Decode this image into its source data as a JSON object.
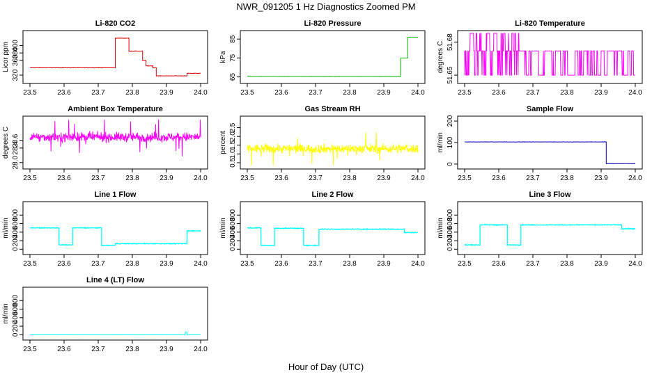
{
  "figure": {
    "title": "NWR_091205  1 Hz Diagnostics Zoomed PM",
    "xlabel": "Hour of Day (UTC)"
  },
  "chart_data": [
    {
      "type": "line",
      "id": "co2",
      "title": "Li-820 CO2",
      "ylabel": "Licor ppm",
      "color": "#dd0000",
      "xlim": [
        23.5,
        24.0
      ],
      "ylim": [
        305,
        433
      ],
      "xticks": [
        "23.5",
        "23.6",
        "23.7",
        "23.8",
        "23.9",
        "24.0"
      ],
      "yticks": [
        {
          "v": 320,
          "label": "320"
        },
        {
          "v": 360,
          "label": "360"
        },
        {
          "v": 380,
          "label": "380"
        },
        {
          "v": 400,
          "label": "400"
        }
      ],
      "noise": 1,
      "segments": [
        [
          23.5,
          23.75,
          340
        ],
        [
          23.75,
          23.79,
          420
        ],
        [
          23.79,
          23.83,
          385
        ],
        [
          23.83,
          23.84,
          360
        ],
        [
          23.84,
          23.86,
          345
        ],
        [
          23.86,
          23.87,
          340
        ],
        [
          23.87,
          23.96,
          318
        ],
        [
          23.96,
          24.0,
          325
        ]
      ]
    },
    {
      "type": "line",
      "id": "pressure",
      "title": "Li-820 Pressure",
      "ylabel": "kPa",
      "color": "#00bb00",
      "xlim": [
        23.5,
        24.0
      ],
      "ylim": [
        63,
        88
      ],
      "xticks": [
        "23.5",
        "23.6",
        "23.7",
        "23.8",
        "23.9",
        "24.0"
      ],
      "yticks": [
        {
          "v": 65,
          "label": "65"
        },
        {
          "v": 75,
          "label": "75"
        },
        {
          "v": 85,
          "label": "85"
        }
      ],
      "noise": 0.1,
      "segments": [
        [
          23.5,
          23.95,
          65.3
        ],
        [
          23.95,
          23.97,
          75
        ],
        [
          23.97,
          24.0,
          86
        ]
      ]
    },
    {
      "type": "binary",
      "id": "li820temp",
      "title": "Li-820 Temperature",
      "ylabel": "degrees C",
      "color": "#ff00ff",
      "xlim": [
        23.5,
        24.0
      ],
      "ylim": [
        51.645,
        51.688
      ],
      "xticks": [
        "23.5",
        "23.6",
        "23.7",
        "23.8",
        "23.9",
        "24.0"
      ],
      "yticks": [
        {
          "v": 51.65,
          "label": "51.65"
        },
        {
          "v": 51.68,
          "label": "51.68"
        }
      ],
      "low": 51.65,
      "high": 51.672,
      "top": 51.688
    },
    {
      "type": "noise",
      "id": "ambient",
      "title": "Ambient Box Temperature",
      "ylabel": "degrees C",
      "color": "#ff00ff",
      "xlim": [
        23.5,
        24.0
      ],
      "ylim": [
        27.9,
        29.2
      ],
      "xticks": [
        "23.5",
        "23.6",
        "23.7",
        "23.8",
        "23.9",
        "24.0"
      ],
      "yticks": [
        {
          "v": 28.0,
          "label": "28.0"
        },
        {
          "v": 28.4,
          "label": "28.4"
        },
        {
          "v": 28.6,
          "label": "28.6"
        }
      ],
      "center": 28.7,
      "spread": 0.22
    },
    {
      "type": "noise",
      "id": "rh",
      "title": "Gas Stream RH",
      "ylabel": "percent",
      "color": "#ffff00",
      "xlim": [
        23.5,
        24.0
      ],
      "ylim": [
        0.3,
        3.0
      ],
      "xticks": [
        "23.5",
        "23.6",
        "23.7",
        "23.8",
        "23.9",
        "24.0"
      ],
      "yticks": [
        {
          "v": 0.5,
          "label": "0.5"
        },
        {
          "v": 1.0,
          "label": "1.0"
        },
        {
          "v": 1.5,
          "label": "1.5"
        },
        {
          "v": 2.0,
          "label": "2.0"
        },
        {
          "v": 2.5,
          "label": "2.5"
        }
      ],
      "center": 1.3,
      "spread": 0.45
    },
    {
      "type": "line",
      "id": "sampleflow",
      "title": "Sample Flow",
      "ylabel": "ml/min",
      "color": "#0000bb",
      "xlim": [
        23.5,
        24.0
      ],
      "ylim": [
        -10,
        210
      ],
      "xticks": [
        "23.5",
        "23.6",
        "23.7",
        "23.8",
        "23.9",
        "24.0"
      ],
      "yticks": [
        {
          "v": 0,
          "label": "0"
        },
        {
          "v": 100,
          "label": "100"
        },
        {
          "v": 200,
          "label": "200"
        }
      ],
      "noise": 1.2,
      "segments": [
        [
          23.5,
          23.915,
          103
        ],
        [
          23.915,
          24.0,
          2
        ]
      ]
    },
    {
      "type": "line",
      "id": "line1",
      "title": "Line 1 Flow",
      "ylabel": "ml/min",
      "color": "#00ffff",
      "xlim": [
        23.5,
        24.0
      ],
      "ylim": [
        -60,
        1050
      ],
      "xticks": [
        "23.5",
        "23.6",
        "23.7",
        "23.8",
        "23.9",
        "24.0"
      ],
      "yticks": [
        {
          "v": 0,
          "label": "0"
        },
        {
          "v": 200,
          "label": "200"
        },
        {
          "v": 400,
          "label": "400"
        },
        {
          "v": 600,
          "label": "600"
        },
        {
          "v": 800,
          "label": "800"
        }
      ],
      "noise": 15,
      "segments": [
        [
          23.5,
          23.585,
          500
        ],
        [
          23.585,
          23.625,
          100
        ],
        [
          23.625,
          23.71,
          500
        ],
        [
          23.71,
          23.75,
          90
        ],
        [
          23.75,
          23.96,
          130
        ],
        [
          23.96,
          24.0,
          430
        ]
      ]
    },
    {
      "type": "line",
      "id": "line2",
      "title": "Line 2 Flow",
      "ylabel": "ml/min",
      "color": "#00ffff",
      "xlim": [
        23.5,
        24.0
      ],
      "ylim": [
        -60,
        1050
      ],
      "xticks": [
        "23.5",
        "23.6",
        "23.7",
        "23.8",
        "23.9",
        "24.0"
      ],
      "yticks": [
        {
          "v": 0,
          "label": "0"
        },
        {
          "v": 200,
          "label": "200"
        },
        {
          "v": 400,
          "label": "400"
        },
        {
          "v": 600,
          "label": "600"
        },
        {
          "v": 800,
          "label": "800"
        }
      ],
      "noise": 15,
      "segments": [
        [
          23.5,
          23.54,
          500
        ],
        [
          23.54,
          23.58,
          90
        ],
        [
          23.58,
          23.665,
          490
        ],
        [
          23.665,
          23.71,
          90
        ],
        [
          23.71,
          23.96,
          470
        ],
        [
          23.96,
          24.0,
          390
        ]
      ]
    },
    {
      "type": "line",
      "id": "line3",
      "title": "Line 3 Flow",
      "ylabel": "ml/min",
      "color": "#00ffff",
      "xlim": [
        23.5,
        24.0
      ],
      "ylim": [
        -60,
        1050
      ],
      "xticks": [
        "23.5",
        "23.6",
        "23.7",
        "23.8",
        "23.9",
        "24.0"
      ],
      "yticks": [
        {
          "v": 0,
          "label": "0"
        },
        {
          "v": 200,
          "label": "200"
        },
        {
          "v": 400,
          "label": "400"
        },
        {
          "v": 600,
          "label": "600"
        },
        {
          "v": 800,
          "label": "800"
        }
      ],
      "noise": 15,
      "segments": [
        [
          23.5,
          23.545,
          100
        ],
        [
          23.545,
          23.625,
          570
        ],
        [
          23.625,
          23.665,
          100
        ],
        [
          23.665,
          23.96,
          570
        ],
        [
          23.96,
          24.0,
          480
        ]
      ]
    },
    {
      "type": "line",
      "id": "line4",
      "title": "Line 4 (LT) Flow",
      "ylabel": "ml/min",
      "color": "#00ffff",
      "xlim": [
        23.5,
        24.0
      ],
      "ylim": [
        -60,
        1050
      ],
      "xticks": [
        "23.5",
        "23.6",
        "23.7",
        "23.8",
        "23.9",
        "24.0"
      ],
      "yticks": [
        {
          "v": 0,
          "label": "0"
        },
        {
          "v": 200,
          "label": "200"
        },
        {
          "v": 400,
          "label": "400"
        },
        {
          "v": 600,
          "label": "600"
        },
        {
          "v": 800,
          "label": "800"
        }
      ],
      "noise": 4,
      "segments": [
        [
          23.5,
          23.955,
          2
        ],
        [
          23.955,
          23.96,
          60
        ],
        [
          23.96,
          24.0,
          5
        ]
      ]
    }
  ]
}
